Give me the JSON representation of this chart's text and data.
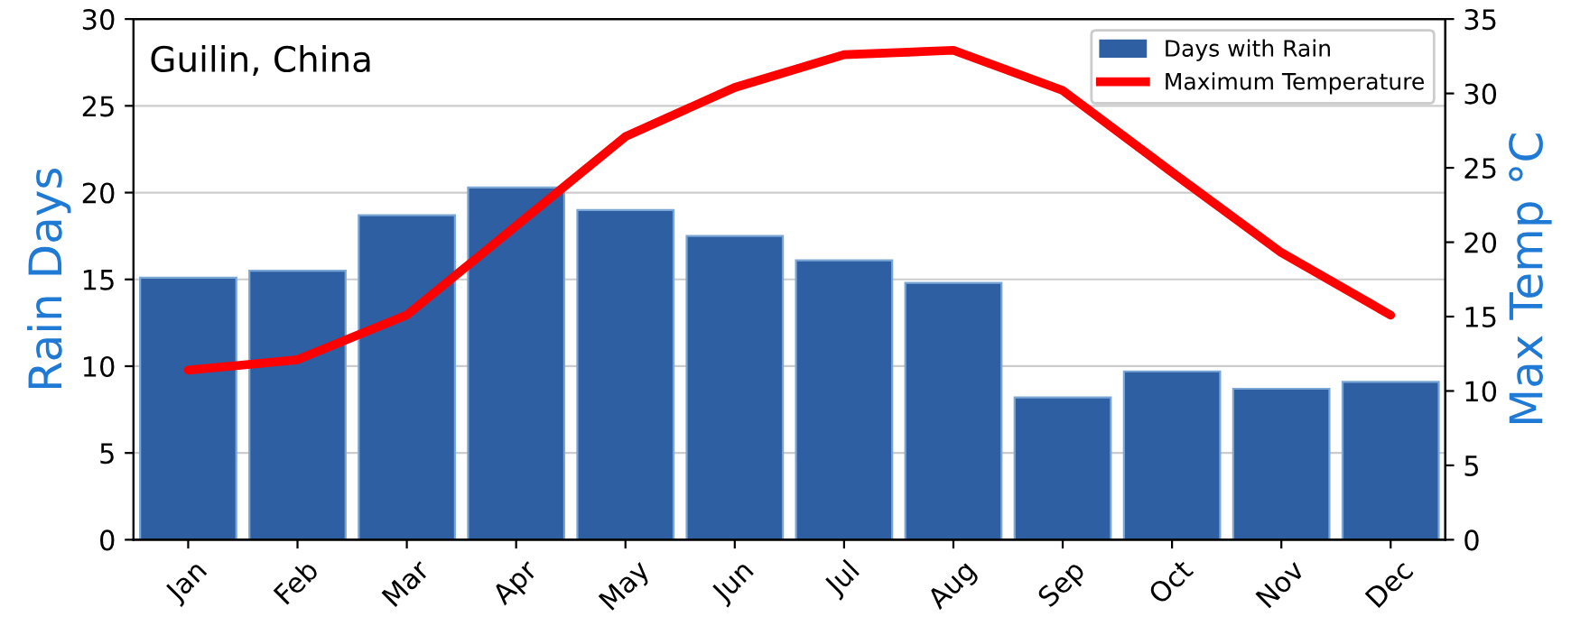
{
  "chart_data": {
    "type": "bar",
    "title": "Guilin, China",
    "ylabel": "Rain Days",
    "y2label": "Max Temp °C",
    "categories": [
      "Jan",
      "Feb",
      "Mar",
      "Apr",
      "May",
      "Jun",
      "Jul",
      "Aug",
      "Sep",
      "Oct",
      "Nov",
      "Dec"
    ],
    "series": [
      {
        "name": "Days with Rain",
        "color": "#2f5fa3",
        "values": [
          15.1,
          15.5,
          18.7,
          20.3,
          19.0,
          17.5,
          16.1,
          14.8,
          8.2,
          9.7,
          8.7,
          9.1
        ]
      },
      {
        "name": "Maximum Temperature",
        "type": "line",
        "axis": "y2",
        "color": "#ff0000",
        "values": [
          11.4,
          12.1,
          15.1,
          21.1,
          27.1,
          30.4,
          32.6,
          32.9,
          30.2,
          24.7,
          19.3,
          15.1
        ]
      }
    ],
    "ylim": [
      0,
      30
    ],
    "yticks": [
      0,
      5,
      10,
      15,
      20,
      25,
      30
    ],
    "y2lim": [
      0,
      35
    ],
    "y2ticks": [
      0,
      5,
      10,
      15,
      20,
      25,
      30,
      35
    ],
    "grid": "y",
    "legend": "top right"
  }
}
